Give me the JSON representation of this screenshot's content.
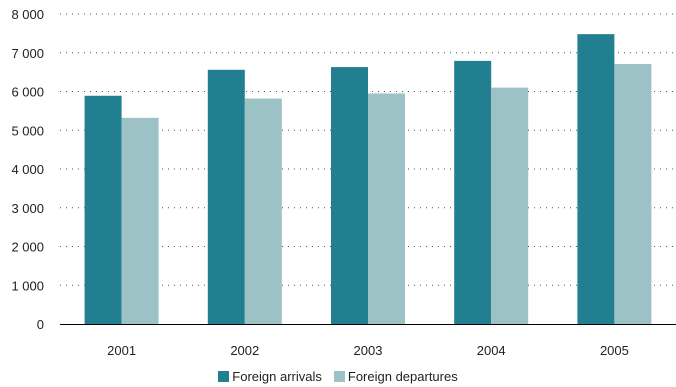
{
  "chart_data": {
    "type": "bar",
    "categories": [
      "2001",
      "2002",
      "2003",
      "2004",
      "2005"
    ],
    "series": [
      {
        "name": "Foreign arrivals",
        "color": "#217f91",
        "values": [
          5890,
          6560,
          6630,
          6790,
          7480
        ]
      },
      {
        "name": "Foreign departures",
        "color": "#9dc2c6",
        "values": [
          5320,
          5820,
          5950,
          6100,
          6710
        ]
      }
    ],
    "yticks": [
      0,
      1000,
      2000,
      3000,
      4000,
      5000,
      6000,
      7000,
      8000
    ],
    "ytick_labels": [
      "0",
      "1 000",
      "2 000",
      "3 000",
      "4 000",
      "5 000",
      "6 000",
      "7 000",
      "8 000"
    ],
    "ylim": [
      0,
      8000
    ],
    "grid": true,
    "legend_position": "bottom"
  }
}
